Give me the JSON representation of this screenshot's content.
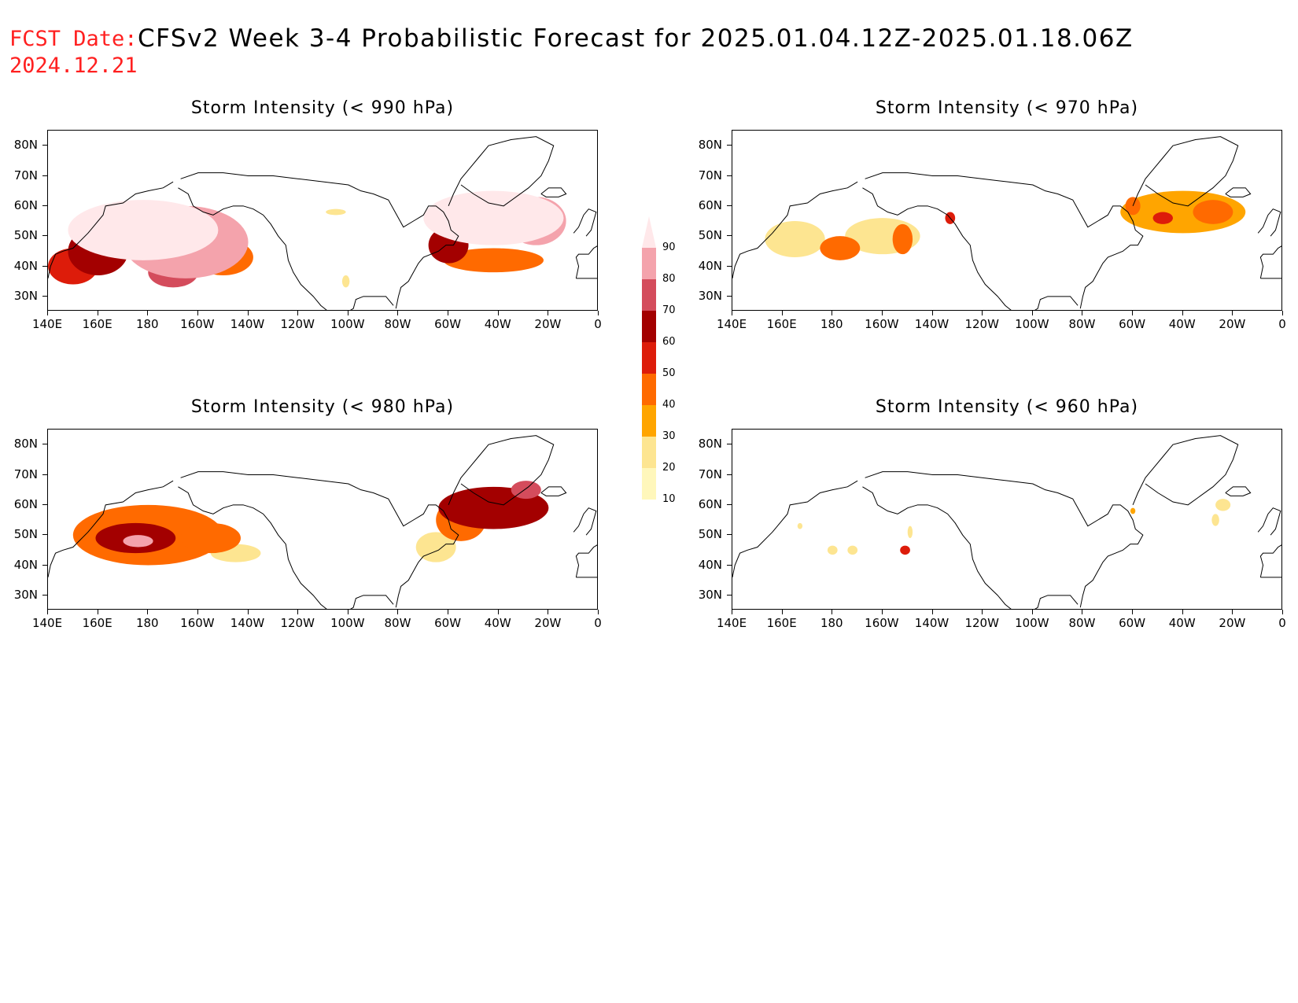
{
  "header": {
    "label": "FCST Date:",
    "title": "CFSv2 Week 3-4 Probabilistic Forecast for 2025.01.04.12Z-2025.01.18.06Z",
    "date": "2024.12.21"
  },
  "axes": {
    "y_labels": [
      "80N",
      "70N",
      "60N",
      "50N",
      "40N",
      "30N"
    ],
    "x_labels": [
      "140E",
      "160E",
      "180",
      "160W",
      "140W",
      "120W",
      "100W",
      "80W",
      "60W",
      "40W",
      "20W",
      "0"
    ],
    "lat_range": [
      25,
      85
    ],
    "lon_range": [
      140,
      360
    ]
  },
  "panels": [
    {
      "title": "Storm Intensity (< 990 hPa)",
      "blobs": [
        {
          "lon": 178,
          "lat": 52,
          "level": 90,
          "rlon": 30,
          "rlat": 10
        },
        {
          "lon": 195,
          "lat": 48,
          "level": 80,
          "rlon": 25,
          "rlat": 12
        },
        {
          "lon": 160,
          "lat": 45,
          "level": 60,
          "rlon": 12,
          "rlat": 8
        },
        {
          "lon": 150,
          "lat": 40,
          "level": 50,
          "rlon": 10,
          "rlat": 6
        },
        {
          "lon": 210,
          "lat": 43,
          "level": 40,
          "rlon": 12,
          "rlat": 6
        },
        {
          "lon": 190,
          "lat": 38,
          "level": 70,
          "rlon": 10,
          "rlat": 5
        },
        {
          "lon": 318,
          "lat": 56,
          "level": 90,
          "rlon": 28,
          "rlat": 9
        },
        {
          "lon": 300,
          "lat": 47,
          "level": 60,
          "rlon": 8,
          "rlat": 6
        },
        {
          "lon": 318,
          "lat": 42,
          "level": 40,
          "rlon": 20,
          "rlat": 4
        },
        {
          "lon": 335,
          "lat": 55,
          "level": 80,
          "rlon": 12,
          "rlat": 8
        },
        {
          "lon": 255,
          "lat": 58,
          "level": 20,
          "rlon": 4,
          "rlat": 1
        },
        {
          "lon": 259,
          "lat": 35,
          "level": 20,
          "rlon": 1.5,
          "rlat": 2
        }
      ]
    },
    {
      "title": "Storm Intensity (< 970 hPa)",
      "blobs": [
        {
          "lon": 165,
          "lat": 49,
          "level": 20,
          "rlon": 12,
          "rlat": 6
        },
        {
          "lon": 183,
          "lat": 46,
          "level": 40,
          "rlon": 8,
          "rlat": 4
        },
        {
          "lon": 200,
          "lat": 50,
          "level": 20,
          "rlon": 15,
          "rlat": 6
        },
        {
          "lon": 208,
          "lat": 49,
          "level": 40,
          "rlon": 4,
          "rlat": 5
        },
        {
          "lon": 227,
          "lat": 56,
          "level": 50,
          "rlon": 2,
          "rlat": 2
        },
        {
          "lon": 320,
          "lat": 58,
          "level": 30,
          "rlon": 25,
          "rlat": 7
        },
        {
          "lon": 312,
          "lat": 56,
          "level": 50,
          "rlon": 4,
          "rlat": 2
        },
        {
          "lon": 332,
          "lat": 58,
          "level": 40,
          "rlon": 8,
          "rlat": 4
        },
        {
          "lon": 300,
          "lat": 60,
          "level": 40,
          "rlon": 3,
          "rlat": 3
        }
      ]
    },
    {
      "title": "Storm Intensity (< 980 hPa)",
      "blobs": [
        {
          "lon": 180,
          "lat": 50,
          "level": 40,
          "rlon": 30,
          "rlat": 10
        },
        {
          "lon": 175,
          "lat": 49,
          "level": 60,
          "rlon": 16,
          "rlat": 5
        },
        {
          "lon": 176,
          "lat": 48,
          "level": 80,
          "rlon": 6,
          "rlat": 2
        },
        {
          "lon": 205,
          "lat": 49,
          "level": 40,
          "rlon": 12,
          "rlat": 5
        },
        {
          "lon": 215,
          "lat": 44,
          "level": 20,
          "rlon": 10,
          "rlat": 3
        },
        {
          "lon": 318,
          "lat": 59,
          "level": 60,
          "rlon": 22,
          "rlat": 7
        },
        {
          "lon": 305,
          "lat": 55,
          "level": 40,
          "rlon": 10,
          "rlat": 7
        },
        {
          "lon": 295,
          "lat": 46,
          "level": 20,
          "rlon": 8,
          "rlat": 5
        },
        {
          "lon": 331,
          "lat": 65,
          "level": 70,
          "rlon": 6,
          "rlat": 3
        }
      ]
    },
    {
      "title": "Storm Intensity (< 960 hPa)",
      "blobs": [
        {
          "lon": 180,
          "lat": 45,
          "level": 20,
          "rlon": 2,
          "rlat": 1.5
        },
        {
          "lon": 188,
          "lat": 45,
          "level": 20,
          "rlon": 2,
          "rlat": 1.5
        },
        {
          "lon": 209,
          "lat": 45,
          "level": 50,
          "rlon": 2,
          "rlat": 1.5
        },
        {
          "lon": 211,
          "lat": 51,
          "level": 20,
          "rlon": 1,
          "rlat": 2
        },
        {
          "lon": 167,
          "lat": 53,
          "level": 20,
          "rlon": 1,
          "rlat": 1
        },
        {
          "lon": 300,
          "lat": 58,
          "level": 30,
          "rlon": 1,
          "rlat": 1
        },
        {
          "lon": 336,
          "lat": 60,
          "level": 20,
          "rlon": 3,
          "rlat": 2
        },
        {
          "lon": 333,
          "lat": 55,
          "level": 20,
          "rlon": 1.5,
          "rlat": 2
        }
      ]
    }
  ],
  "colorbar": {
    "levels": [
      "10",
      "20",
      "30",
      "40",
      "50",
      "60",
      "70",
      "80",
      "90"
    ],
    "colors": [
      "#fff7bb",
      "#fde591",
      "#ffa500",
      "#ff6a00",
      "#dd1c0a",
      "#a30000",
      "#d44c5c",
      "#f4a3ac",
      "#ffe8ea"
    ]
  }
}
